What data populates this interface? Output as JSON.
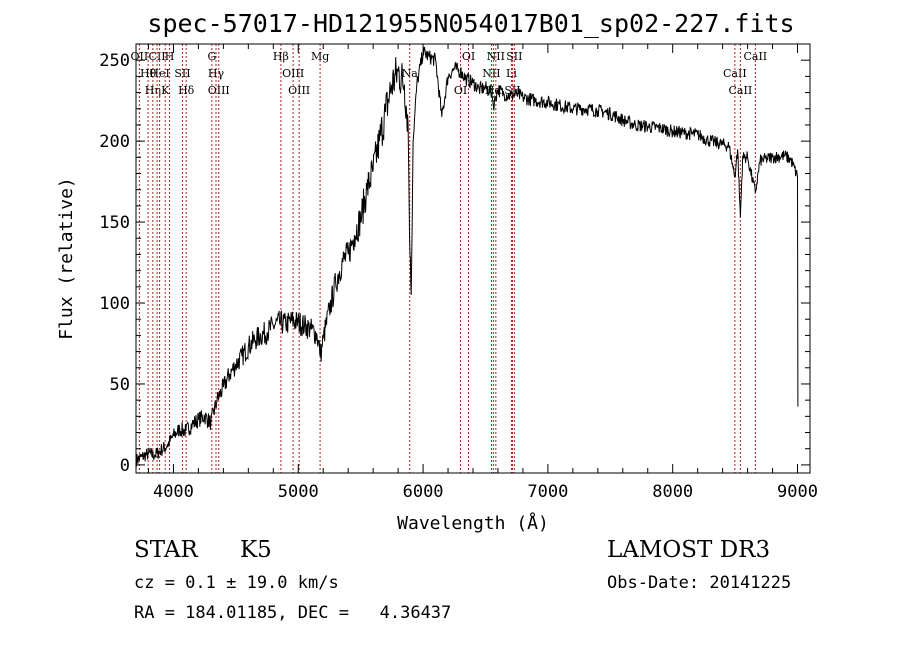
{
  "chart_data": {
    "type": "line",
    "title": "spec-57017-HD121955N054017B01_sp02-227.fits",
    "xlabel": "Wavelength (Å)",
    "ylabel": "Flux (relative)",
    "xlim": [
      3700,
      9100
    ],
    "ylim": [
      -5,
      260
    ],
    "xticks": [
      4000,
      5000,
      6000,
      7000,
      8000,
      9000
    ],
    "yticks": [
      0,
      50,
      100,
      150,
      200,
      250
    ],
    "grid": false,
    "series": [
      {
        "points": [
          [
            3700,
            3
          ],
          [
            3750,
            5
          ],
          [
            3800,
            7
          ],
          [
            3850,
            6
          ],
          [
            3900,
            9
          ],
          [
            3950,
            12
          ],
          [
            4000,
            18
          ],
          [
            4050,
            22
          ],
          [
            4100,
            21
          ],
          [
            4150,
            25
          ],
          [
            4200,
            28
          ],
          [
            4250,
            30
          ],
          [
            4300,
            26
          ],
          [
            4350,
            40
          ],
          [
            4400,
            48
          ],
          [
            4450,
            56
          ],
          [
            4500,
            62
          ],
          [
            4550,
            67
          ],
          [
            4600,
            73
          ],
          [
            4650,
            77
          ],
          [
            4700,
            80
          ],
          [
            4750,
            82
          ],
          [
            4800,
            86
          ],
          [
            4850,
            88
          ],
          [
            4900,
            87
          ],
          [
            4950,
            89
          ],
          [
            5000,
            88
          ],
          [
            5050,
            86
          ],
          [
            5100,
            84
          ],
          [
            5150,
            80
          ],
          [
            5180,
            68
          ],
          [
            5200,
            78
          ],
          [
            5250,
            96
          ],
          [
            5300,
            112
          ],
          [
            5350,
            125
          ],
          [
            5400,
            130
          ],
          [
            5450,
            142
          ],
          [
            5500,
            152
          ],
          [
            5550,
            170
          ],
          [
            5600,
            182
          ],
          [
            5650,
            200
          ],
          [
            5700,
            218
          ],
          [
            5750,
            235
          ],
          [
            5800,
            243
          ],
          [
            5850,
            235
          ],
          [
            5880,
            210
          ],
          [
            5895,
            130
          ],
          [
            5905,
            105
          ],
          [
            5920,
            200
          ],
          [
            5950,
            235
          ],
          [
            6000,
            255
          ],
          [
            6050,
            252
          ],
          [
            6100,
            250
          ],
          [
            6150,
            215
          ],
          [
            6200,
            240
          ],
          [
            6250,
            245
          ],
          [
            6300,
            243
          ],
          [
            6350,
            238
          ],
          [
            6400,
            236
          ],
          [
            6450,
            232
          ],
          [
            6500,
            233
          ],
          [
            6550,
            230
          ],
          [
            6563,
            222
          ],
          [
            6600,
            232
          ],
          [
            6650,
            229
          ],
          [
            6700,
            228
          ],
          [
            6750,
            229
          ],
          [
            6800,
            227
          ],
          [
            6900,
            225
          ],
          [
            7000,
            224
          ],
          [
            7100,
            222
          ],
          [
            7200,
            220
          ],
          [
            7300,
            220
          ],
          [
            7400,
            219
          ],
          [
            7500,
            217
          ],
          [
            7600,
            213
          ],
          [
            7700,
            210
          ],
          [
            7800,
            209
          ],
          [
            7900,
            208
          ],
          [
            8000,
            206
          ],
          [
            8100,
            205
          ],
          [
            8200,
            204
          ],
          [
            8300,
            200
          ],
          [
            8400,
            198
          ],
          [
            8450,
            197
          ],
          [
            8498,
            178
          ],
          [
            8520,
            195
          ],
          [
            8542,
            153
          ],
          [
            8560,
            190
          ],
          [
            8600,
            190
          ],
          [
            8662,
            168
          ],
          [
            8700,
            188
          ],
          [
            8800,
            190
          ],
          [
            8900,
            191
          ],
          [
            8950,
            188
          ],
          [
            9000,
            178
          ],
          [
            9003,
            36
          ]
        ]
      }
    ],
    "lines": [
      {
        "wavelength": 3727,
        "labels": [
          "OII"
        ]
      },
      {
        "wavelength": 3797,
        "labels": [
          "Hθ"
        ]
      },
      {
        "wavelength": 3835,
        "labels": [
          "Hη"
        ]
      },
      {
        "wavelength": 3869,
        "labels": [
          "CII"
        ]
      },
      {
        "wavelength": 3889,
        "labels": [
          "HeI"
        ]
      },
      {
        "wavelength": 3934,
        "labels": [
          "K"
        ]
      },
      {
        "wavelength": 3969,
        "labels": [
          "H"
        ]
      },
      {
        "wavelength": 4072,
        "labels": [
          "SII"
        ]
      },
      {
        "wavelength": 4102,
        "labels": [
          "Hδ"
        ]
      },
      {
        "wavelength": 4308,
        "labels": [
          "G"
        ]
      },
      {
        "wavelength": 4341,
        "labels": [
          "Hγ"
        ]
      },
      {
        "wavelength": 4363,
        "labels": [
          "OIII"
        ]
      },
      {
        "wavelength": 4861,
        "labels": [
          "Hβ"
        ]
      },
      {
        "wavelength": 4959,
        "labels": [
          "OIII"
        ]
      },
      {
        "wavelength": 5007,
        "labels": [
          "OIII"
        ]
      },
      {
        "wavelength": 5175,
        "labels": [
          "Mg"
        ]
      },
      {
        "wavelength": 5893,
        "labels": [
          "Na"
        ]
      },
      {
        "wavelength": 6300,
        "labels": [
          "OI"
        ]
      },
      {
        "wavelength": 6364,
        "labels": [
          "OI"
        ]
      },
      {
        "wavelength": 6548,
        "labels": [
          "NII"
        ]
      },
      {
        "wavelength": 6563,
        "labels": [
          "Hα"
        ]
      },
      {
        "wavelength": 6583,
        "labels": [
          "NII"
        ]
      },
      {
        "wavelength": 6708,
        "labels": [
          "Li"
        ]
      },
      {
        "wavelength": 6716,
        "labels": [
          "SII"
        ]
      },
      {
        "wavelength": 6731,
        "labels": [
          "SII"
        ]
      },
      {
        "wavelength": 8498,
        "labels": [
          "CaII"
        ]
      },
      {
        "wavelength": 8542,
        "labels": [
          "CaII"
        ]
      },
      {
        "wavelength": 8662,
        "labels": [
          "CaII"
        ]
      }
    ],
    "colors": {
      "spectrum": "#000000",
      "line_markers": "#b22222"
    }
  },
  "info": {
    "object": "STAR",
    "subclass": "K5",
    "survey": "LAMOST DR3",
    "redshift": "cz = 0.1 ± 19.0 km/s",
    "obs_date": "Obs-Date: 20141225",
    "coords": "RA = 184.01185, DEC =   4.36437"
  }
}
